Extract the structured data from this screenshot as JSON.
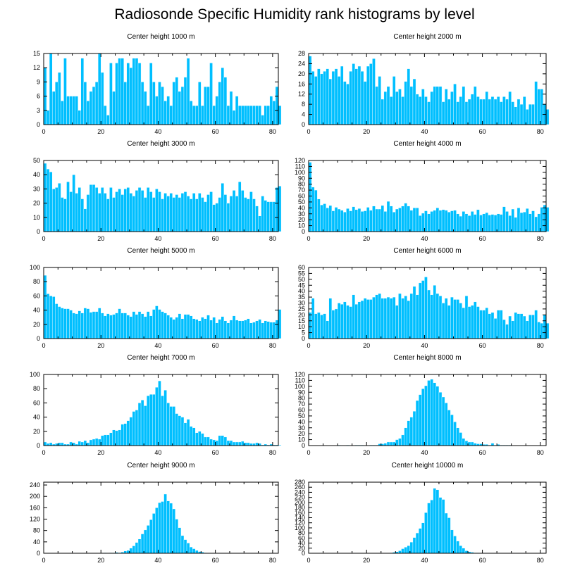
{
  "title": "Radiosonde Specific Humidity rank histograms by level",
  "bar_color": "#00BFFF",
  "chart_data": [
    {
      "type": "bar",
      "title": "Center height 1000 m",
      "xlabel": "",
      "ylabel": "",
      "xlim": [
        0,
        82
      ],
      "ylim": [
        0,
        15
      ],
      "xticks": [
        0,
        20,
        40,
        60,
        80
      ],
      "yticks": [
        0,
        3,
        6,
        9,
        12,
        15
      ],
      "values": [
        12,
        3,
        15,
        7,
        9,
        11,
        5,
        14,
        6,
        6,
        6,
        6,
        3,
        14,
        9,
        5,
        7,
        8,
        9,
        15,
        11,
        4,
        2,
        13,
        7,
        13,
        14,
        14,
        9,
        13,
        12,
        14,
        14,
        13,
        9,
        7,
        4,
        13,
        9,
        6,
        9,
        8,
        5,
        6,
        4,
        9,
        10,
        7,
        8,
        10,
        14,
        5,
        4,
        4,
        9,
        4,
        8,
        8,
        13,
        4,
        6,
        9,
        12,
        10,
        4,
        7,
        3,
        6,
        4,
        4,
        4,
        4,
        4,
        4,
        4,
        4,
        2,
        4,
        4,
        6,
        5,
        8,
        4
      ]
    },
    {
      "type": "bar",
      "title": "Center height 2000 m",
      "xlabel": "",
      "ylabel": "",
      "xlim": [
        0,
        82
      ],
      "ylim": [
        0,
        28
      ],
      "xticks": [
        0,
        20,
        40,
        60,
        80
      ],
      "yticks": [
        0,
        4,
        8,
        12,
        16,
        20,
        24,
        28
      ],
      "values": [
        27,
        21,
        19,
        22,
        20,
        21,
        22,
        18,
        21,
        22,
        19,
        23,
        17,
        16,
        21,
        24,
        22,
        23,
        21,
        17,
        23,
        24,
        26,
        15,
        19,
        10,
        13,
        15,
        11,
        19,
        13,
        14,
        11,
        17,
        22,
        15,
        18,
        12,
        11,
        14,
        11,
        9,
        13,
        15,
        15,
        15,
        9,
        14,
        10,
        13,
        16,
        9,
        11,
        15,
        9,
        10,
        12,
        15,
        11,
        10,
        10,
        13,
        10,
        11,
        10,
        11,
        9,
        11,
        10,
        13,
        9,
        7,
        10,
        8,
        11,
        6,
        8,
        8,
        17,
        14,
        14,
        8,
        6
      ]
    },
    {
      "type": "bar",
      "title": "Center height 3000 m",
      "xlabel": "",
      "ylabel": "",
      "xlim": [
        0,
        82
      ],
      "ylim": [
        0,
        50
      ],
      "xticks": [
        0,
        20,
        40,
        60,
        80
      ],
      "yticks": [
        0,
        10,
        20,
        30,
        40,
        50
      ],
      "values": [
        48,
        44,
        42,
        30,
        31,
        34,
        24,
        23,
        35,
        28,
        40,
        27,
        31,
        23,
        16,
        26,
        33,
        33,
        31,
        27,
        31,
        27,
        23,
        31,
        24,
        28,
        30,
        26,
        30,
        31,
        27,
        25,
        29,
        31,
        29,
        24,
        31,
        28,
        24,
        30,
        28,
        23,
        27,
        25,
        27,
        24,
        26,
        24,
        27,
        28,
        25,
        23,
        27,
        23,
        27,
        24,
        21,
        26,
        28,
        19,
        20,
        24,
        34,
        26,
        20,
        25,
        29,
        25,
        35,
        29,
        24,
        23,
        28,
        23,
        18,
        11,
        25,
        22,
        21,
        21,
        21,
        31,
        32
      ]
    },
    {
      "type": "bar",
      "title": "Center height 4000 m",
      "xlabel": "",
      "ylabel": "",
      "xlim": [
        0,
        82
      ],
      "ylim": [
        0,
        120
      ],
      "xticks": [
        0,
        20,
        40,
        60,
        80
      ],
      "yticks": [
        0,
        10,
        20,
        30,
        40,
        50,
        60,
        70,
        80,
        90,
        100,
        110,
        120
      ],
      "values": [
        117,
        75,
        70,
        55,
        45,
        47,
        40,
        44,
        35,
        41,
        38,
        36,
        33,
        39,
        35,
        42,
        37,
        39,
        34,
        35,
        41,
        36,
        43,
        38,
        38,
        44,
        34,
        51,
        43,
        33,
        38,
        40,
        43,
        48,
        43,
        36,
        40,
        40,
        27,
        31,
        35,
        30,
        34,
        36,
        40,
        36,
        37,
        36,
        33,
        35,
        36,
        30,
        26,
        34,
        30,
        27,
        34,
        29,
        37,
        28,
        30,
        32,
        28,
        29,
        28,
        30,
        29,
        42,
        34,
        27,
        38,
        24,
        40,
        32,
        33,
        39,
        30,
        35,
        25,
        30,
        41,
        45,
        41
      ]
    },
    {
      "type": "bar",
      "title": "Center height 5000 m",
      "xlabel": "",
      "ylabel": "",
      "xlim": [
        0,
        82
      ],
      "ylim": [
        0,
        100
      ],
      "xticks": [
        0,
        20,
        40,
        60,
        80
      ],
      "yticks": [
        0,
        20,
        40,
        60,
        80,
        100
      ],
      "values": [
        89,
        63,
        60,
        59,
        49,
        45,
        43,
        42,
        42,
        40,
        36,
        35,
        39,
        36,
        43,
        42,
        37,
        38,
        38,
        43,
        36,
        32,
        35,
        33,
        34,
        36,
        42,
        36,
        36,
        33,
        31,
        38,
        34,
        38,
        35,
        31,
        38,
        32,
        41,
        46,
        41,
        38,
        36,
        33,
        30,
        27,
        30,
        35,
        28,
        34,
        34,
        32,
        28,
        27,
        25,
        30,
        28,
        33,
        26,
        30,
        22,
        27,
        31,
        25,
        22,
        26,
        32,
        26,
        25,
        25,
        26,
        28,
        22,
        23,
        25,
        27,
        22,
        25,
        24,
        23,
        23,
        26,
        41
      ]
    },
    {
      "type": "bar",
      "title": "Center height 6000 m",
      "xlabel": "",
      "ylabel": "",
      "xlim": [
        0,
        82
      ],
      "ylim": [
        0,
        60
      ],
      "xticks": [
        0,
        20,
        40,
        60,
        80
      ],
      "yticks": [
        0,
        5,
        10,
        15,
        20,
        25,
        30,
        35,
        40,
        45,
        50,
        55,
        60
      ],
      "values": [
        22,
        34,
        21,
        22,
        20,
        21,
        15,
        34,
        24,
        25,
        30,
        29,
        31,
        28,
        27,
        37,
        29,
        31,
        32,
        34,
        33,
        33,
        35,
        37,
        38,
        34,
        34,
        35,
        34,
        35,
        28,
        38,
        34,
        36,
        32,
        38,
        44,
        37,
        47,
        49,
        52,
        41,
        37,
        45,
        38,
        36,
        30,
        34,
        28,
        35,
        33,
        33,
        30,
        26,
        36,
        27,
        28,
        31,
        27,
        24,
        24,
        26,
        21,
        22,
        17,
        24,
        24,
        16,
        12,
        19,
        15,
        22,
        21,
        21,
        19,
        15,
        20,
        20,
        24,
        14,
        13,
        20,
        13
      ]
    },
    {
      "type": "bar",
      "title": "Center height 7000 m",
      "xlabel": "",
      "ylabel": "",
      "xlim": [
        0,
        82
      ],
      "ylim": [
        0,
        100
      ],
      "xticks": [
        0,
        20,
        40,
        60,
        80
      ],
      "yticks": [
        0,
        20,
        40,
        60,
        80,
        100
      ],
      "values": [
        5,
        3,
        4,
        2,
        3,
        4,
        4,
        2,
        2,
        5,
        4,
        2,
        6,
        5,
        7,
        4,
        8,
        9,
        10,
        9,
        14,
        15,
        15,
        18,
        22,
        21,
        22,
        30,
        31,
        35,
        40,
        48,
        50,
        60,
        64,
        56,
        70,
        72,
        72,
        82,
        91,
        70,
        78,
        60,
        55,
        55,
        45,
        42,
        40,
        32,
        37,
        27,
        25,
        18,
        20,
        17,
        12,
        12,
        9,
        8,
        7,
        14,
        14,
        12,
        7,
        7,
        5,
        5,
        5,
        6,
        4,
        4,
        3,
        3,
        4,
        3,
        1,
        2,
        1,
        2,
        1,
        1,
        1
      ]
    },
    {
      "type": "bar",
      "title": "Center height 8000 m",
      "xlabel": "",
      "ylabel": "",
      "xlim": [
        0,
        82
      ],
      "ylim": [
        0,
        120
      ],
      "xticks": [
        0,
        20,
        40,
        60,
        80
      ],
      "yticks": [
        0,
        10,
        20,
        30,
        40,
        50,
        60,
        70,
        80,
        90,
        100,
        110,
        120
      ],
      "values": [
        0,
        0,
        0,
        0,
        0,
        0,
        0,
        0,
        0,
        0,
        1,
        0,
        0,
        1,
        0,
        0,
        1,
        1,
        1,
        0,
        0,
        1,
        1,
        1,
        3,
        3,
        4,
        6,
        6,
        6,
        10,
        12,
        18,
        30,
        42,
        48,
        58,
        76,
        86,
        96,
        101,
        110,
        112,
        106,
        100,
        90,
        82,
        72,
        60,
        52,
        40,
        30,
        22,
        12,
        8,
        6,
        6,
        4,
        3,
        3,
        2,
        2,
        1,
        4,
        1,
        2,
        1,
        1,
        1,
        1,
        0,
        0,
        0,
        0,
        0,
        0,
        0,
        0,
        0,
        0,
        0,
        0,
        0
      ]
    },
    {
      "type": "bar",
      "title": "Center height 9000 m",
      "xlabel": "",
      "ylabel": "",
      "xlim": [
        0,
        82
      ],
      "ylim": [
        0,
        250
      ],
      "xticks": [
        0,
        20,
        40,
        60,
        80
      ],
      "yticks": [
        0,
        40,
        80,
        120,
        160,
        200,
        240
      ],
      "values": [
        0,
        0,
        0,
        0,
        0,
        0,
        0,
        0,
        0,
        0,
        0,
        0,
        0,
        0,
        0,
        0,
        0,
        0,
        1,
        0,
        1,
        2,
        1,
        2,
        2,
        3,
        2,
        4,
        8,
        10,
        18,
        26,
        38,
        50,
        68,
        82,
        98,
        118,
        140,
        160,
        178,
        182,
        208,
        184,
        176,
        156,
        120,
        90,
        62,
        48,
        36,
        22,
        16,
        10,
        6,
        4,
        2,
        1,
        1,
        0,
        0,
        0,
        0,
        0,
        0,
        0,
        0,
        0,
        0,
        0,
        0,
        0,
        0,
        0,
        0,
        0,
        0,
        0,
        0,
        0,
        0,
        0,
        0
      ]
    },
    {
      "type": "bar",
      "title": "Center height 10000 m",
      "xlabel": "",
      "ylabel": "",
      "xlim": [
        0,
        82
      ],
      "ylim": [
        0,
        280
      ],
      "xticks": [
        0,
        20,
        40,
        60,
        80
      ],
      "yticks": [
        0,
        20,
        40,
        60,
        80,
        100,
        120,
        140,
        160,
        180,
        200,
        220,
        240,
        260,
        280
      ],
      "values": [
        0,
        0,
        0,
        0,
        0,
        0,
        0,
        0,
        0,
        0,
        0,
        0,
        0,
        0,
        0,
        0,
        0,
        0,
        0,
        0,
        0,
        0,
        0,
        0,
        0,
        0,
        1,
        1,
        2,
        4,
        6,
        10,
        18,
        24,
        30,
        44,
        62,
        80,
        98,
        120,
        160,
        198,
        210,
        256,
        250,
        220,
        212,
        158,
        140,
        92,
        68,
        48,
        30,
        20,
        10,
        6,
        4,
        2,
        2,
        1,
        1,
        0,
        0,
        0,
        0,
        0,
        0,
        0,
        0,
        0,
        0,
        0,
        0,
        0,
        0,
        0,
        0,
        0,
        0,
        0,
        0,
        0,
        0
      ]
    }
  ]
}
